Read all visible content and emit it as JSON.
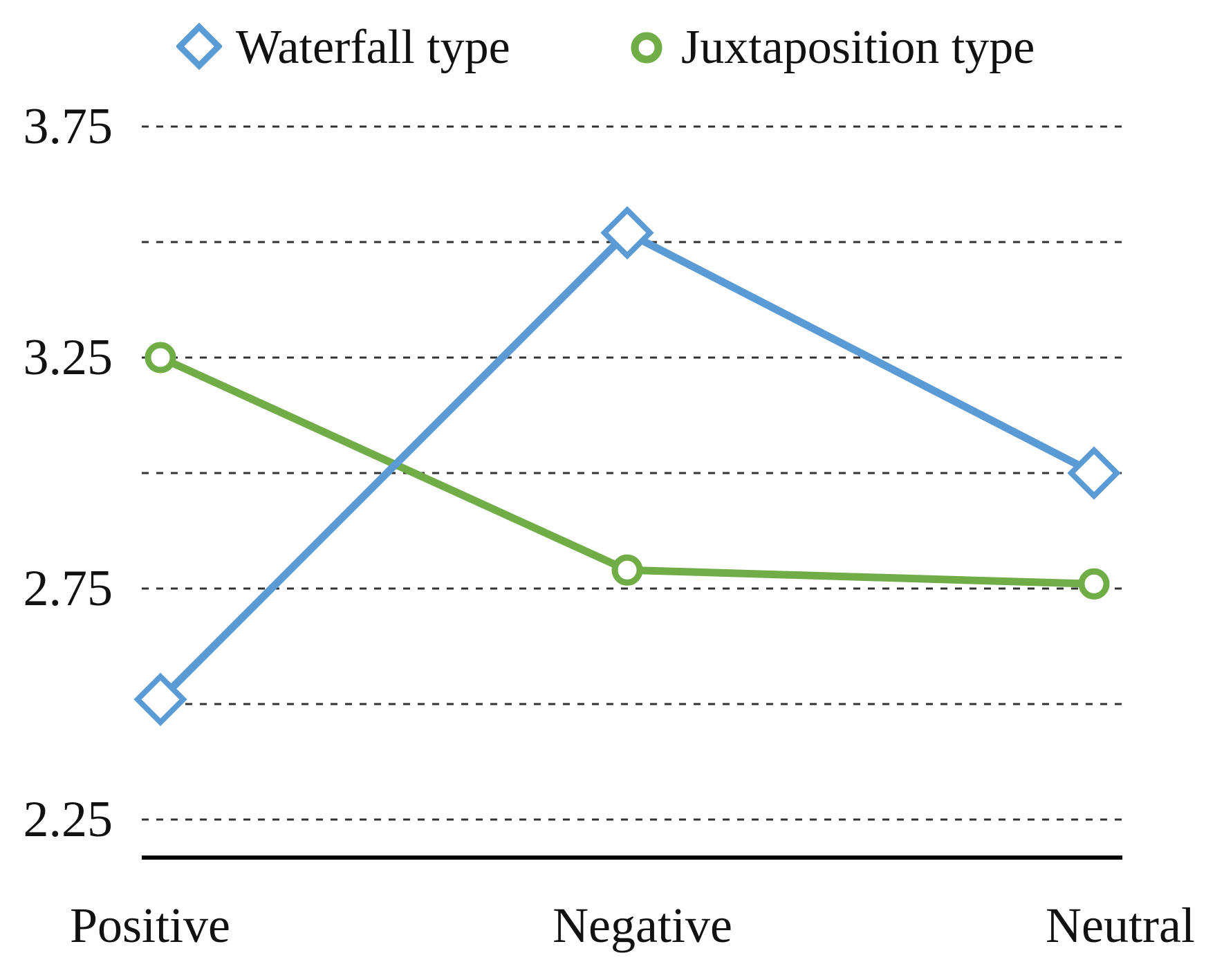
{
  "chart_data": {
    "type": "line",
    "title": "",
    "xlabel": "",
    "ylabel": "",
    "categories": [
      "Positive",
      "Negative",
      "Neutral"
    ],
    "series": [
      {
        "name": "Waterfall type",
        "color": "#5B9BD5",
        "marker": "diamond",
        "values": [
          2.51,
          3.52,
          3.0
        ]
      },
      {
        "name": "Juxtaposition type",
        "color": "#70AD47",
        "marker": "circle",
        "values": [
          3.25,
          2.79,
          2.76
        ]
      }
    ],
    "ylim": [
      2.25,
      3.75
    ],
    "ytick_interval": 0.25,
    "ytick_labels": [
      "3.75",
      "3.25",
      "2.75",
      "2.25"
    ],
    "ytick_label_values": [
      3.75,
      3.25,
      2.75,
      2.25
    ],
    "grid": {
      "horizontal": true,
      "style": "dashed",
      "color": "#333333"
    },
    "axis_color": "#000000",
    "marker_fill": "#ffffff",
    "text_color": "#111111",
    "legend_position": "top"
  }
}
